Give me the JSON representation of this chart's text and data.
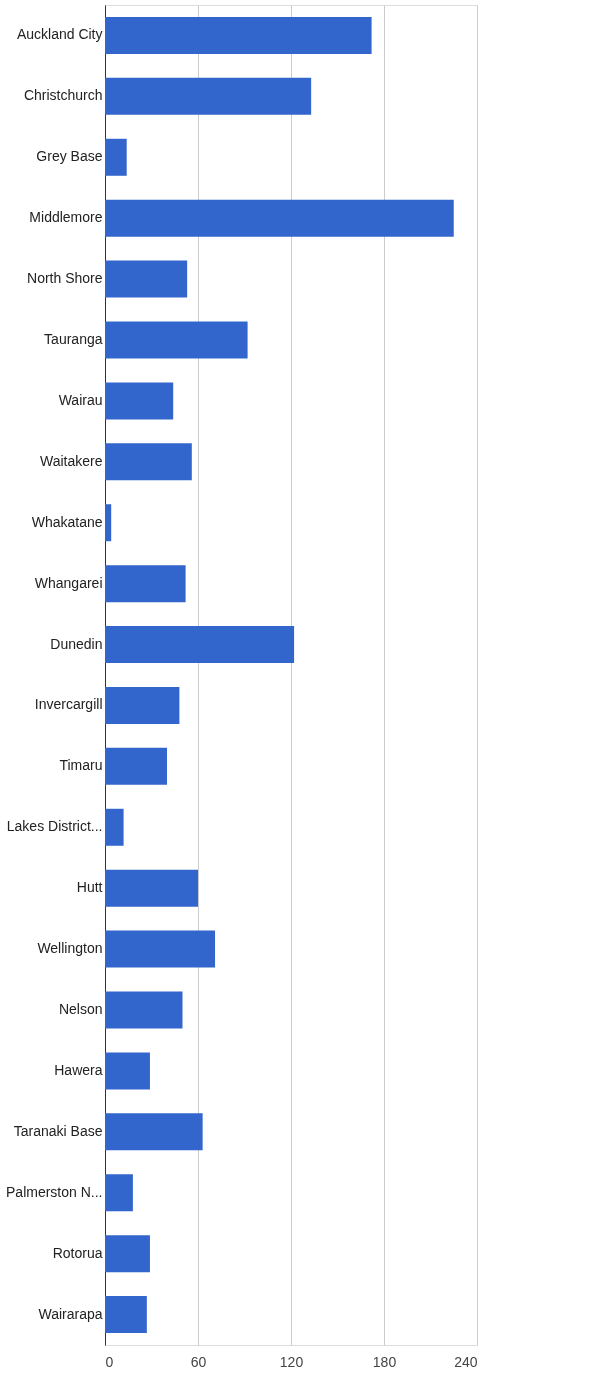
{
  "chart_data": {
    "type": "bar",
    "orientation": "horizontal",
    "categories": [
      "Auckland City",
      "Christchurch",
      "Grey Base",
      "Middlemore",
      "North Shore",
      "Tauranga",
      "Wairau",
      "Waitakere",
      "Whakatane",
      "Whangarei",
      "Dunedin",
      "Invercargill",
      "Timaru",
      "Lakes District...",
      "Hutt",
      "Wellington",
      "Nelson",
      "Hawera",
      "Taranaki Base",
      "Palmerston N...",
      "Rotorua",
      "Wairarapa"
    ],
    "values": [
      172,
      133,
      14,
      225,
      53,
      92,
      44,
      56,
      4,
      52,
      122,
      48,
      40,
      12,
      60,
      71,
      50,
      29,
      63,
      18,
      29,
      27
    ],
    "color": "#3366cc",
    "xlim": [
      0,
      240
    ],
    "xticks": [
      0,
      60,
      120,
      180,
      240
    ],
    "grid": "x"
  }
}
